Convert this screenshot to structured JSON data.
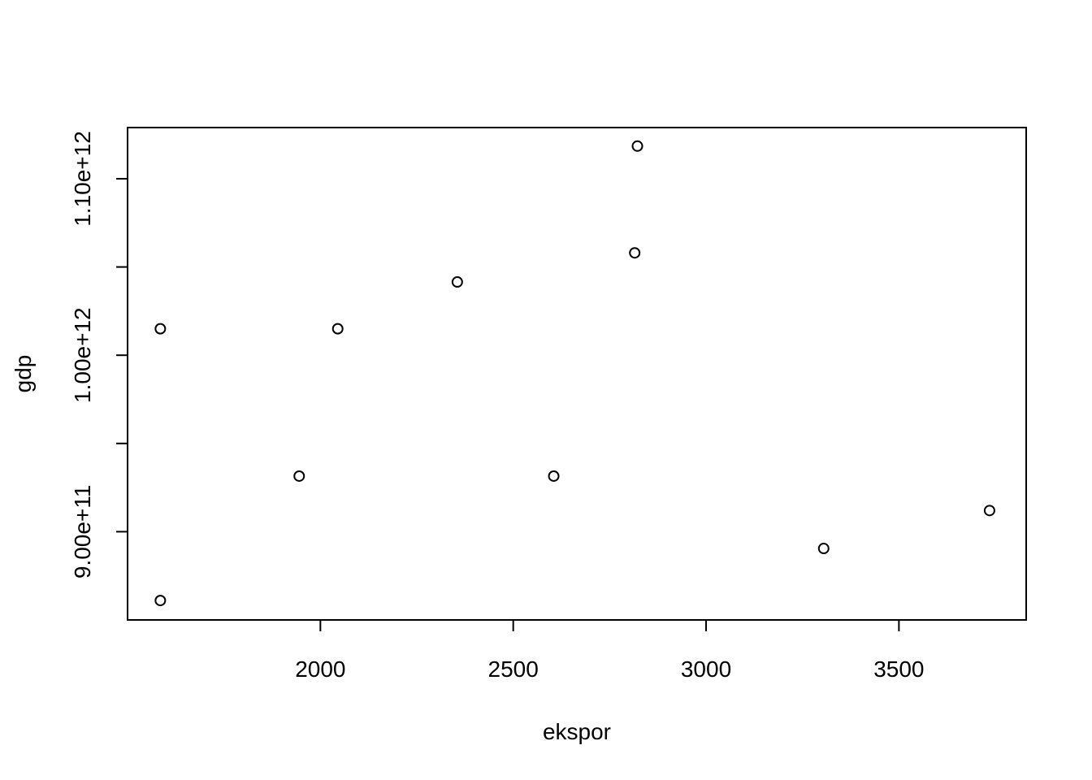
{
  "chart_data": {
    "type": "scatter",
    "title": "",
    "xlabel": "ekspor",
    "ylabel": "gdp",
    "xlim": [
      1500,
      3830
    ],
    "ylim": [
      850000000000,
      1129000000000
    ],
    "x_ticks": [
      2000,
      2500,
      3000,
      3500
    ],
    "x_tick_labels": [
      "2000",
      "2500",
      "3000",
      "3500"
    ],
    "y_ticks": [
      900000000000,
      950000000000,
      1000000000000,
      1050000000000,
      1100000000000
    ],
    "y_tick_labels": [
      "9.00e+11",
      "",
      "1.00e+12",
      "",
      "1.10e+12"
    ],
    "grid": false,
    "legend": "none",
    "point_color": "#000000",
    "points": [
      {
        "x": 1585,
        "y": 1015000000000
      },
      {
        "x": 1585,
        "y": 861000000000
      },
      {
        "x": 1945,
        "y": 931500000000
      },
      {
        "x": 2045,
        "y": 1015000000000
      },
      {
        "x": 2355,
        "y": 1041500000000
      },
      {
        "x": 2605,
        "y": 931500000000
      },
      {
        "x": 2815,
        "y": 1058000000000
      },
      {
        "x": 2822,
        "y": 1118500000000
      },
      {
        "x": 3305,
        "y": 890500000000
      },
      {
        "x": 3735,
        "y": 912000000000
      }
    ]
  }
}
